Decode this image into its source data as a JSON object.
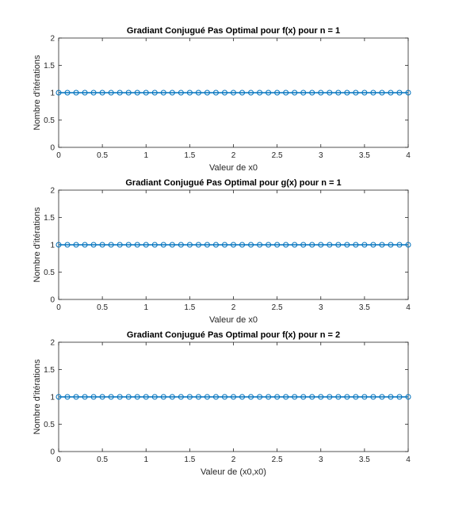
{
  "chart_data": [
    {
      "type": "line",
      "title": "Gradiant Conjugué Pas Optimal pour f(x) pour n = 1",
      "xlabel": "Valeur de x0",
      "ylabel": "Nombre d'itérations",
      "xlim": [
        0,
        4
      ],
      "ylim": [
        0,
        2
      ],
      "xticks": [
        "0",
        "0.5",
        "1",
        "1.5",
        "2",
        "2.5",
        "3",
        "3.5",
        "4"
      ],
      "yticks": [
        "0",
        "0.5",
        "1",
        "1.5",
        "2"
      ],
      "grid": false,
      "series": [
        {
          "color": "#0072BD",
          "marker": "circle",
          "x": [
            0,
            0.1,
            0.2,
            0.3,
            0.4,
            0.5,
            0.6,
            0.7,
            0.8,
            0.9,
            1,
            1.1,
            1.2,
            1.3,
            1.4,
            1.5,
            1.6,
            1.7,
            1.8,
            1.9,
            2,
            2.1,
            2.2,
            2.3,
            2.4,
            2.5,
            2.6,
            2.7,
            2.8,
            2.9,
            3,
            3.1,
            3.2,
            3.3,
            3.4,
            3.5,
            3.6,
            3.7,
            3.8,
            3.9,
            4
          ],
          "values": [
            1,
            1,
            1,
            1,
            1,
            1,
            1,
            1,
            1,
            1,
            1,
            1,
            1,
            1,
            1,
            1,
            1,
            1,
            1,
            1,
            1,
            1,
            1,
            1,
            1,
            1,
            1,
            1,
            1,
            1,
            1,
            1,
            1,
            1,
            1,
            1,
            1,
            1,
            1,
            1,
            1
          ]
        }
      ]
    },
    {
      "type": "line",
      "title": "Gradiant Conjugué Pas Optimal pour g(x) pour n = 1",
      "xlabel": "Valeur de x0",
      "ylabel": "Nombre d'itérations",
      "xlim": [
        0,
        4
      ],
      "ylim": [
        0,
        2
      ],
      "xticks": [
        "0",
        "0.5",
        "1",
        "1.5",
        "2",
        "2.5",
        "3",
        "3.5",
        "4"
      ],
      "yticks": [
        "0",
        "0.5",
        "1",
        "1.5",
        "2"
      ],
      "grid": false,
      "series": [
        {
          "color": "#0072BD",
          "marker": "circle",
          "x": [
            0,
            0.1,
            0.2,
            0.3,
            0.4,
            0.5,
            0.6,
            0.7,
            0.8,
            0.9,
            1,
            1.1,
            1.2,
            1.3,
            1.4,
            1.5,
            1.6,
            1.7,
            1.8,
            1.9,
            2,
            2.1,
            2.2,
            2.3,
            2.4,
            2.5,
            2.6,
            2.7,
            2.8,
            2.9,
            3,
            3.1,
            3.2,
            3.3,
            3.4,
            3.5,
            3.6,
            3.7,
            3.8,
            3.9,
            4
          ],
          "values": [
            1,
            1,
            1,
            1,
            1,
            1,
            1,
            1,
            1,
            1,
            1,
            1,
            1,
            1,
            1,
            1,
            1,
            1,
            1,
            1,
            1,
            1,
            1,
            1,
            1,
            1,
            1,
            1,
            1,
            1,
            1,
            1,
            1,
            1,
            1,
            1,
            1,
            1,
            1,
            1,
            1
          ]
        }
      ]
    },
    {
      "type": "line",
      "title": "Gradiant Conjugué Pas Optimal pour f(x) pour n = 2",
      "xlabel": "Valeur de (x0,x0)",
      "ylabel": "Nombre d'itérations",
      "xlim": [
        0,
        4
      ],
      "ylim": [
        0,
        2
      ],
      "xticks": [
        "0",
        "0.5",
        "1",
        "1.5",
        "2",
        "2.5",
        "3",
        "3.5",
        "4"
      ],
      "yticks": [
        "0",
        "0.5",
        "1",
        "1.5",
        "2"
      ],
      "grid": false,
      "series": [
        {
          "color": "#0072BD",
          "marker": "circle",
          "x": [
            0,
            0.1,
            0.2,
            0.3,
            0.4,
            0.5,
            0.6,
            0.7,
            0.8,
            0.9,
            1,
            1.1,
            1.2,
            1.3,
            1.4,
            1.5,
            1.6,
            1.7,
            1.8,
            1.9,
            2,
            2.1,
            2.2,
            2.3,
            2.4,
            2.5,
            2.6,
            2.7,
            2.8,
            2.9,
            3,
            3.1,
            3.2,
            3.3,
            3.4,
            3.5,
            3.6,
            3.7,
            3.8,
            3.9,
            4
          ],
          "values": [
            1,
            1,
            1,
            1,
            1,
            1,
            1,
            1,
            1,
            1,
            1,
            1,
            1,
            1,
            1,
            1,
            1,
            1,
            1,
            1,
            1,
            1,
            1,
            1,
            1,
            1,
            1,
            1,
            1,
            1,
            1,
            1,
            1,
            1,
            1,
            1,
            1,
            1,
            1,
            1,
            1
          ]
        }
      ]
    }
  ]
}
